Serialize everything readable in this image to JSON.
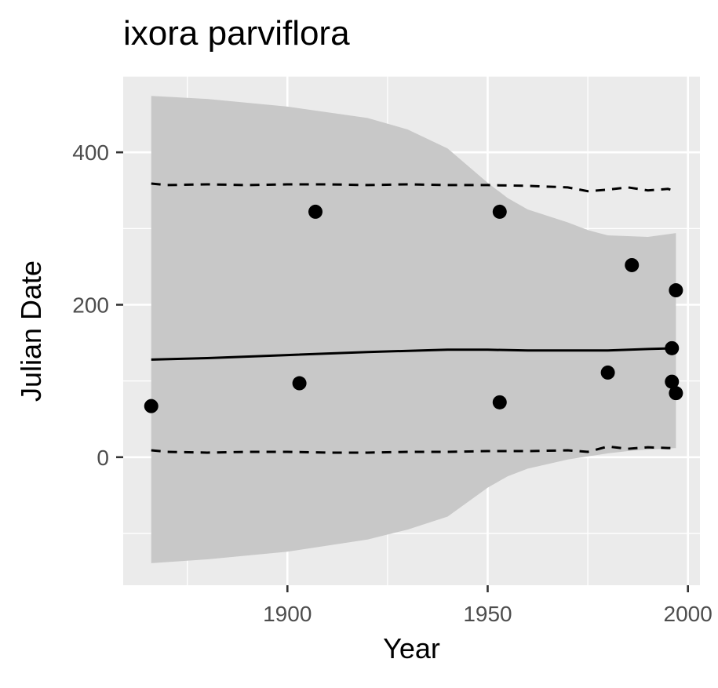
{
  "chart_data": {
    "type": "scatter",
    "title": "ixora parviflora",
    "xlabel": "Year",
    "ylabel": "Julian Date",
    "xlim": [
      1859,
      2003
    ],
    "ylim": [
      -168,
      500
    ],
    "x_ticks": [
      1900,
      1950,
      2000
    ],
    "y_ticks": [
      0,
      200,
      400
    ],
    "grid": true,
    "legend": "none",
    "points": [
      {
        "x": 1866,
        "y": 67
      },
      {
        "x": 1903,
        "y": 97
      },
      {
        "x": 1907,
        "y": 322
      },
      {
        "x": 1953,
        "y": 322
      },
      {
        "x": 1953,
        "y": 72
      },
      {
        "x": 1980,
        "y": 111
      },
      {
        "x": 1986,
        "y": 252
      },
      {
        "x": 1996,
        "y": 143
      },
      {
        "x": 1996,
        "y": 99
      },
      {
        "x": 1997,
        "y": 219
      },
      {
        "x": 1997,
        "y": 84
      }
    ],
    "fit_line": {
      "x": [
        1866,
        1880,
        1900,
        1920,
        1940,
        1950,
        1960,
        1970,
        1980,
        1990,
        1997
      ],
      "y": [
        128,
        130,
        134,
        138,
        141,
        141,
        140,
        140,
        140,
        142,
        143
      ]
    },
    "confidence_band": {
      "x": [
        1866,
        1880,
        1900,
        1920,
        1930,
        1940,
        1950,
        1955,
        1960,
        1970,
        1975,
        1980,
        1985,
        1990,
        1997
      ],
      "upper": [
        474,
        470,
        460,
        445,
        430,
        405,
        360,
        340,
        325,
        308,
        298,
        291,
        290,
        289,
        294
      ],
      "lower": [
        -139,
        -134,
        -124,
        -108,
        -95,
        -78,
        -40,
        -25,
        -15,
        -3,
        1,
        5,
        8,
        10,
        12
      ]
    },
    "upper_dashed": {
      "x": [
        1866,
        1870,
        1880,
        1890,
        1900,
        1910,
        1920,
        1930,
        1940,
        1950,
        1960,
        1970,
        1975,
        1980,
        1985,
        1990,
        1995,
        1997
      ],
      "y": [
        359,
        357,
        358,
        357,
        358,
        358,
        357,
        358,
        357,
        357,
        356,
        354,
        349,
        351,
        354,
        350,
        352,
        349
      ]
    },
    "lower_dashed": {
      "x": [
        1866,
        1870,
        1880,
        1890,
        1900,
        1910,
        1920,
        1930,
        1940,
        1950,
        1960,
        1970,
        1975,
        1980,
        1985,
        1990,
        1995,
        1997
      ],
      "y": [
        9,
        7,
        6,
        7,
        7,
        6,
        6,
        7,
        7,
        8,
        8,
        9,
        7,
        14,
        11,
        13,
        12,
        12
      ]
    },
    "colors": {
      "panel": "#ebebeb",
      "grid": "#ffffff",
      "band": "#c8c8c8",
      "point": "#000000",
      "line": "#000000",
      "tick_text": "#4d4d4d"
    }
  }
}
